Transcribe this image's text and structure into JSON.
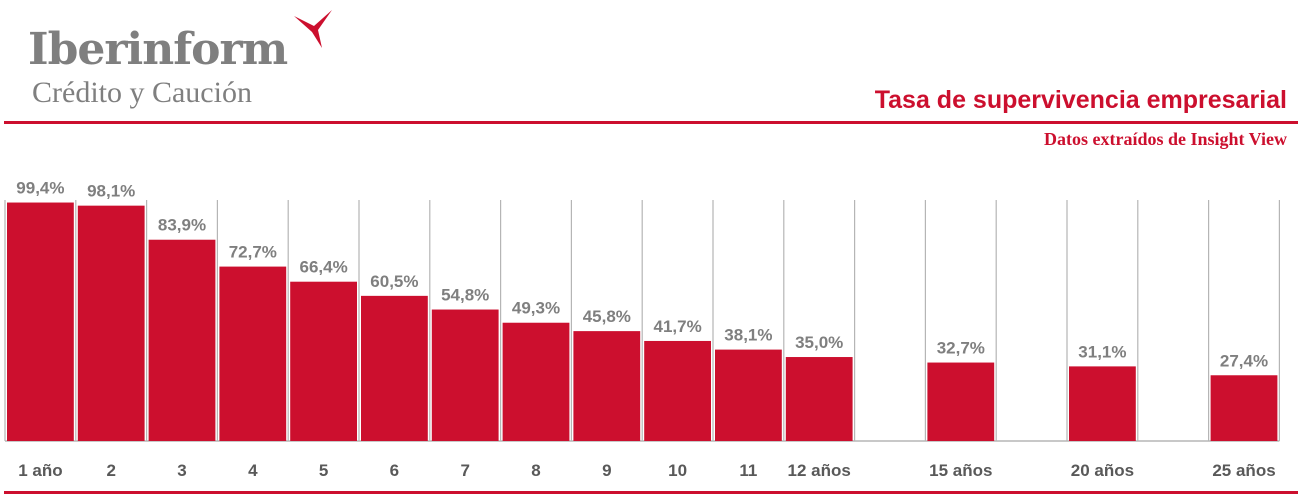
{
  "header": {
    "brand": "Iberinform",
    "brand_sub": "Crédito y Caución",
    "title": "Tasa de supervivencia empresarial",
    "subtitle": "Datos extraídos de Insight View"
  },
  "colors": {
    "accent": "#cc0f2e",
    "label": "#7f7f7f",
    "grid": "#b5b5b5",
    "axis_text": "#595959"
  },
  "chart_data": {
    "type": "bar",
    "categories": [
      "1 año",
      "2",
      "3",
      "4",
      "5",
      "6",
      "7",
      "8",
      "9",
      "10",
      "11",
      "12 años",
      "",
      "15 años",
      "",
      "20 años",
      "",
      "25 años"
    ],
    "values": [
      99.4,
      98.1,
      83.9,
      72.7,
      66.4,
      60.5,
      54.8,
      49.3,
      45.8,
      41.7,
      38.1,
      35.0,
      null,
      32.7,
      null,
      31.1,
      null,
      27.4
    ],
    "data_labels": [
      "99,4%",
      "98,1%",
      "83,9%",
      "72,7%",
      "66,4%",
      "60,5%",
      "54,8%",
      "49,3%",
      "45,8%",
      "41,7%",
      "38,1%",
      "35,0%",
      "",
      "32,7%",
      "",
      "31,1%",
      "",
      "27,4%"
    ],
    "ylim": [
      0,
      100
    ],
    "grid": "vertical",
    "legend": "none"
  }
}
